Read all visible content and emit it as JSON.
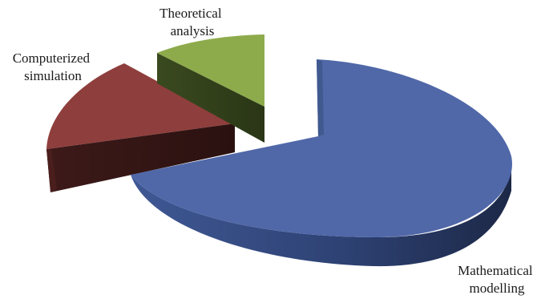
{
  "chart_data": {
    "type": "pie",
    "style": "3d-exploded",
    "categories": [
      "Mathematical modelling",
      "Computerized simulation",
      "Theoretical analysis"
    ],
    "values": [
      68,
      19,
      13
    ],
    "unit": "percent (estimated from slice angles)",
    "title": "",
    "legend": "none",
    "colors": {
      "Mathematical modelling": "#5068A8",
      "Computerized simulation": "#8E3E3C",
      "Theoretical analysis": "#8EAB4C"
    },
    "labels": [
      {
        "series": "Mathematical modelling",
        "lines": [
          "Mathematical",
          "modelling"
        ]
      },
      {
        "series": "Computerized simulation",
        "lines": [
          "Computerized",
          "simulation"
        ]
      },
      {
        "series": "Theoretical analysis",
        "lines": [
          "Theoretical",
          "analysis"
        ]
      }
    ]
  }
}
